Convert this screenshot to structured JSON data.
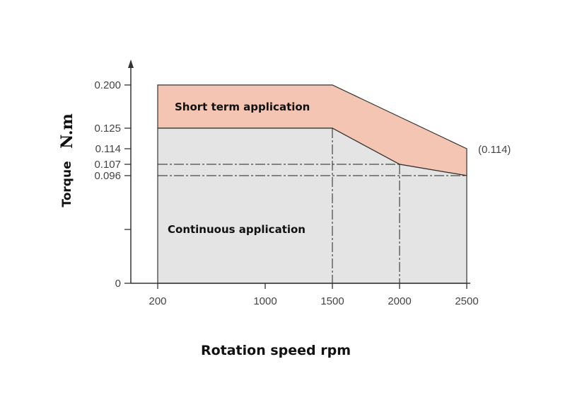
{
  "chart_data": {
    "type": "area",
    "title": "",
    "xlabel": "Rotation speed rpm",
    "ylabel": "Torque",
    "yunit": "N.m",
    "x_ticks": [
      200,
      1000,
      1500,
      2000,
      2500
    ],
    "x_tick_labels": [
      "200",
      "1000",
      "1500",
      "2000",
      "2500"
    ],
    "y_ticks": [
      0,
      0.048,
      0.096,
      0.107,
      0.114,
      0.125,
      0.2
    ],
    "y_tick_labels": [
      "0",
      "",
      "0.096",
      "0.107",
      "0.114",
      "0.125",
      "0.200"
    ],
    "xlim": [
      200,
      2500
    ],
    "ylim": [
      0,
      0.2
    ],
    "series": [
      {
        "name": "Short term application",
        "color": "#f4c5b2",
        "x": [
          200,
          1500,
          2500
        ],
        "y": [
          0.2,
          0.2,
          0.114
        ]
      },
      {
        "name": "Continuous application",
        "color": "#e4e4e4",
        "x": [
          200,
          1500,
          2000,
          2500
        ],
        "y": [
          0.125,
          0.125,
          0.107,
          0.096
        ]
      }
    ],
    "annotations": [
      "(0.114)"
    ],
    "grid": false
  }
}
